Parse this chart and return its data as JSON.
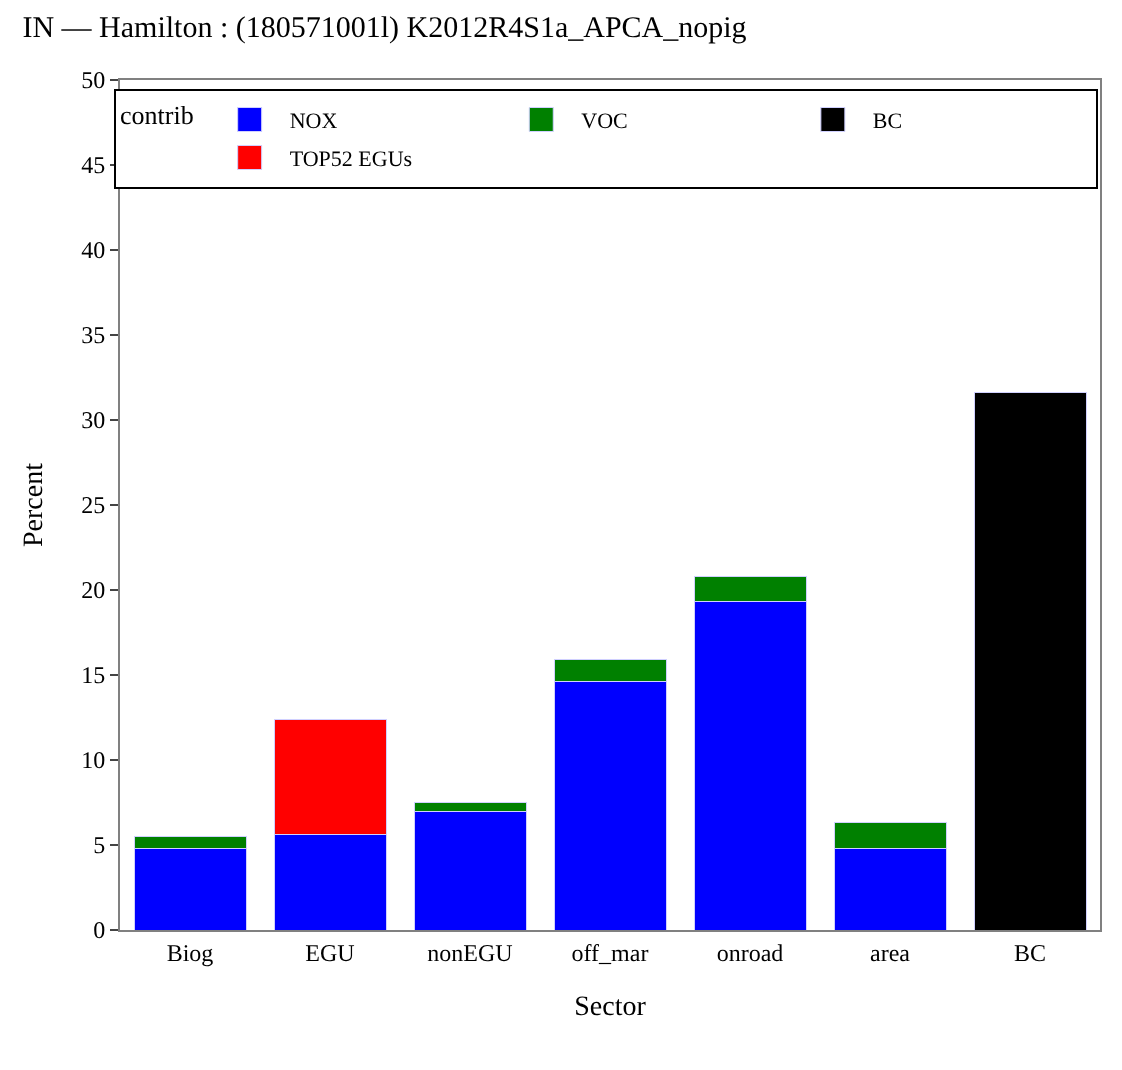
{
  "chart_data": {
    "type": "bar",
    "stacked": true,
    "title": "IN — Hamilton : (180571001l) K2012R4S1a_APCA_nopig",
    "xlabel": "Sector",
    "ylabel": "Percent",
    "legend_title": "contrib",
    "legend": "top",
    "categories": [
      "Biog",
      "EGU",
      "nonEGU",
      "off_mar",
      "onroad",
      "area",
      "BC"
    ],
    "series": [
      {
        "name": "NOX",
        "color": "#0000ff",
        "values": [
          4.8,
          5.6,
          7.0,
          14.6,
          19.3,
          4.8,
          null
        ]
      },
      {
        "name": "VOC",
        "color": "#008000",
        "values": [
          0.7,
          null,
          0.5,
          1.3,
          1.5,
          1.5,
          null
        ]
      },
      {
        "name": "BC",
        "color": "#000000",
        "values": [
          null,
          null,
          null,
          null,
          null,
          null,
          31.6
        ]
      },
      {
        "name": "TOP52 EGUs",
        "color": "#ff0000",
        "values": [
          null,
          6.8,
          null,
          null,
          null,
          null,
          null
        ]
      }
    ],
    "ylim": [
      0,
      50
    ],
    "yticks": [
      0,
      5,
      10,
      15,
      20,
      25,
      30,
      35,
      40,
      45,
      50
    ]
  }
}
